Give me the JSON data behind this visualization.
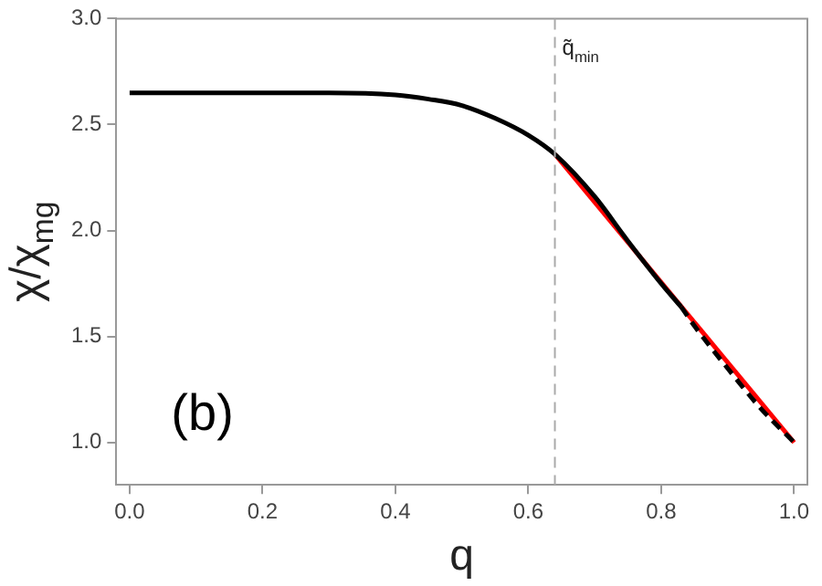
{
  "chart_data": {
    "type": "line",
    "xlabel": "q",
    "ylabel": "χ/χ$_{mg}$",
    "xlim": [
      -0.02,
      1.02
    ],
    "ylim": [
      0.8,
      3.0
    ],
    "xticks": [
      {
        "value": 0,
        "label": "0.0"
      },
      0.2,
      0.4,
      0.6,
      0.8,
      {
        "value": 1,
        "label": "1.0"
      }
    ],
    "yticks": [
      {
        "value": 1,
        "label": "1.0"
      },
      1.5,
      {
        "value": 2,
        "label": "2.0"
      },
      2.5,
      {
        "value": 3,
        "label": "3.0"
      }
    ],
    "grid": false,
    "legend": false,
    "marker": "none",
    "series": [
      {
        "color": "#000000",
        "line_style": "solid",
        "x": [
          0,
          0.1,
          0.2,
          0.3,
          0.4,
          0.45,
          0.5,
          0.55,
          0.6,
          0.64,
          0.7,
          0.75,
          0.8,
          0.83
        ],
        "values": [
          2.65,
          2.65,
          2.65,
          2.65,
          2.64,
          2.62,
          2.59,
          2.53,
          2.45,
          2.36,
          2.16,
          1.95,
          1.75,
          1.64
        ]
      },
      {
        "color": "#000000",
        "line_style": "dashed",
        "x": [
          0.83,
          0.85,
          0.9,
          0.95,
          1.0
        ],
        "values": [
          1.64,
          1.55,
          1.35,
          1.16,
          1.0
        ]
      },
      {
        "color": "#ff0000",
        "line_style": "solid",
        "x": [
          0.64,
          1.0
        ],
        "values": [
          2.36,
          1.0
        ]
      }
    ],
    "ref_lines": [
      {
        "axis": "x",
        "value": 0.64,
        "label": "q̃$_{min}$",
        "color": "#aaaaaa",
        "line_style": "dashed"
      }
    ],
    "annotations": [
      "(b)"
    ]
  }
}
